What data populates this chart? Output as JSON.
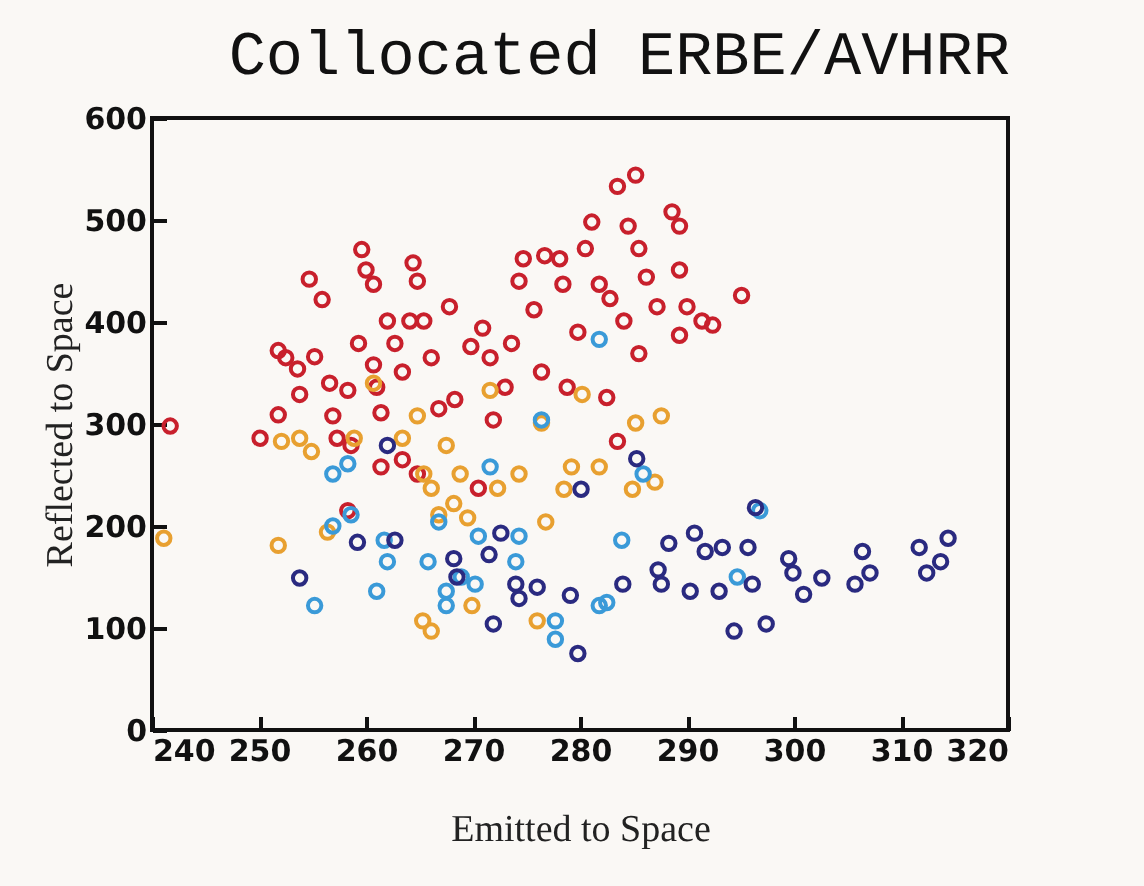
{
  "chart_data": {
    "type": "scatter",
    "title": "Collocated ERBE/AVHRR",
    "xlabel": "Emitted to Space",
    "ylabel": "Reflected to Space",
    "xlim": [
      240,
      320
    ],
    "xticks": [
      240,
      250,
      260,
      270,
      280,
      290,
      300,
      310,
      320
    ],
    "ylim": [
      0,
      600
    ],
    "yticks": [
      0,
      100,
      200,
      300,
      400,
      500,
      600
    ],
    "grid": false,
    "marker": "circle",
    "series": [
      {
        "color": "#c8202c",
        "x": [
          241.7,
          250.1,
          251.8,
          251.8,
          252.5,
          253.6,
          254.7,
          255.9,
          255.2,
          253.8,
          256.6,
          256.9,
          257.3,
          258.3,
          258.6,
          259.3,
          259.6,
          260,
          260.7,
          260.7,
          261,
          261.4,
          262,
          262.7,
          263.4,
          264.4,
          264.8,
          264.1,
          265.4,
          266.1,
          267.8,
          266.8,
          268.3,
          264.8,
          263.4,
          261.4,
          258.3,
          269.8,
          270.9,
          271.6,
          271.9,
          273,
          273.6,
          274.3,
          274.7,
          275.7,
          276.7,
          278.1,
          278.4,
          276.4,
          278.8,
          279.8,
          280.5,
          281.1,
          281.8,
          282.8,
          283.5,
          285.2,
          284.5,
          285.5,
          286.2,
          284.1,
          285.5,
          287.2,
          288.6,
          289.3,
          289.3,
          290,
          289.3,
          291.4,
          292.4,
          295.1,
          283.5,
          282.5,
          270.5
        ],
        "values": [
          298,
          286,
          309,
          372,
          365,
          354,
          442,
          422,
          366,
          329,
          340,
          308,
          286,
          333,
          279,
          379,
          471,
          451,
          437,
          358,
          336,
          311,
          401,
          379,
          351,
          458,
          440,
          401,
          401,
          365,
          415,
          315,
          324,
          251,
          265,
          258,
          215,
          376,
          394,
          365,
          304,
          336,
          379,
          440,
          462,
          412,
          465,
          462,
          437,
          351,
          336,
          390,
          472,
          498,
          437,
          423,
          533,
          544,
          494,
          472,
          444,
          401,
          369,
          415,
          508,
          494,
          451,
          415,
          387,
          401,
          397,
          426,
          283,
          326,
          237
        ]
      },
      {
        "color": "#e8a030",
        "x": [
          241.1,
          251.8,
          252.1,
          253.8,
          254.9,
          256.4,
          258.9,
          260.7,
          264.8,
          265.4,
          266.1,
          267.5,
          268.2,
          269.5,
          268.8,
          271.6,
          272.3,
          274.3,
          276.4,
          276.8,
          278.5,
          279.2,
          280.2,
          281.8,
          285.2,
          287.6,
          284.9,
          287,
          265.3,
          266.1,
          269.9,
          276,
          263.4,
          266.8
        ],
        "values": [
          188,
          181,
          283,
          286,
          273,
          194,
          286,
          340,
          308,
          251,
          237,
          279,
          222,
          208,
          251,
          333,
          237,
          251,
          301,
          204,
          236,
          258,
          329,
          258,
          301,
          308,
          236,
          243,
          107,
          97,
          122,
          107,
          286,
          211
        ]
      },
      {
        "color": "#3a9ad8",
        "x": [
          256.9,
          258.3,
          256.9,
          258.6,
          261,
          255.2,
          262,
          261.7,
          265.8,
          266.8,
          267.5,
          267.5,
          268.9,
          270.2,
          270.5,
          271.6,
          274.3,
          274,
          276.4,
          277.7,
          277.7,
          281.8,
          283.9,
          281.8,
          282.5,
          285.9,
          296.8,
          294.7
        ],
        "values": [
          251,
          261,
          200,
          211,
          136,
          122,
          165,
          186,
          165,
          204,
          136,
          122,
          150,
          143,
          190,
          258,
          190,
          165,
          304,
          107,
          89,
          383,
          186,
          122,
          125,
          251,
          215,
          150
        ]
      },
      {
        "color": "#2a2a80",
        "x": [
          253.8,
          259.2,
          262,
          262.7,
          268.2,
          268.5,
          271.9,
          271.5,
          272.6,
          274,
          274.3,
          276,
          279.1,
          279.8,
          280.1,
          284,
          285.3,
          287.3,
          287.6,
          288.3,
          290.7,
          290.3,
          293,
          293.3,
          295.7,
          294.4,
          296.1,
          297.4,
          296.4,
          299.5,
          299.9,
          300.9,
          302.6,
          305.7,
          306.4,
          307.1,
          311.7,
          312.4,
          313.7,
          314.4,
          291.7
        ],
        "values": [
          149,
          184,
          279,
          186,
          168,
          150,
          104,
          172,
          193,
          143,
          129,
          140,
          132,
          75,
          236,
          143,
          266,
          157,
          143,
          183,
          193,
          136,
          136,
          179,
          179,
          97,
          143,
          104,
          218,
          168,
          154,
          133,
          149,
          143,
          175,
          154,
          179,
          154,
          165,
          188,
          175
        ]
      }
    ]
  }
}
